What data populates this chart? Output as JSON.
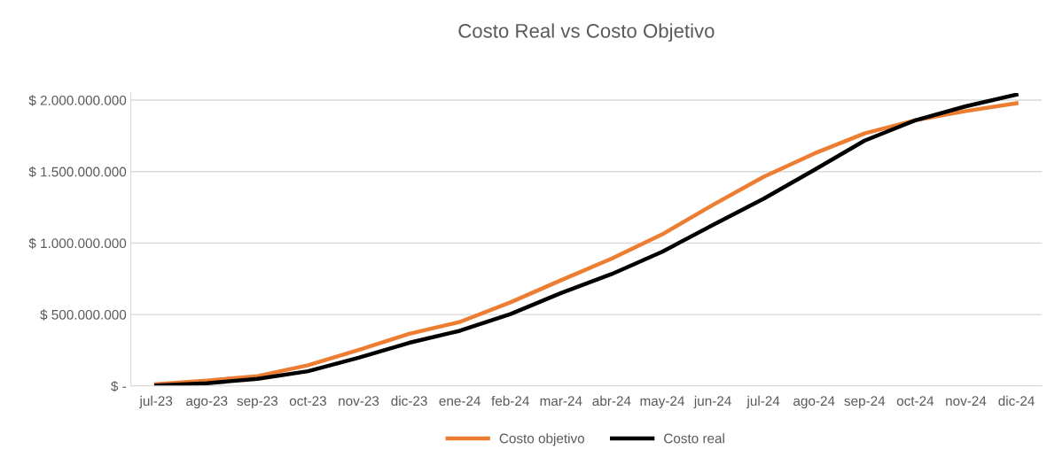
{
  "chart_data": {
    "type": "line",
    "title": "Costo Real vs Costo Objetivo",
    "categories": [
      "jul-23",
      "ago-23",
      "sep-23",
      "oct-23",
      "nov-23",
      "dic-23",
      "ene-24",
      "feb-24",
      "mar-24",
      "abr-24",
      "may-24",
      "jun-24",
      "jul-24",
      "ago-24",
      "sep-24",
      "oct-24",
      "nov-24",
      "dic-24"
    ],
    "series": [
      {
        "name": "Costo objetivo",
        "color": "#ed7d31",
        "values": [
          13000000,
          38000000,
          69000000,
          145000000,
          252000000,
          365000000,
          448000000,
          585000000,
          740000000,
          891000000,
          1061000000,
          1267000000,
          1463000000,
          1626000000,
          1767000000,
          1859000000,
          1924000000,
          1978000000
        ]
      },
      {
        "name": "Costo real",
        "color": "#000000",
        "values": [
          4000000,
          19000000,
          50000000,
          103000000,
          197000000,
          302000000,
          386000000,
          503000000,
          650000000,
          783000000,
          939000000,
          1126000000,
          1309000000,
          1511000000,
          1717000000,
          1859000000,
          1957000000,
          2039000000
        ]
      }
    ],
    "ylim": [
      0,
      2050000000
    ],
    "yticks": [
      {
        "value": 0,
        "label": "$ -"
      },
      {
        "value": 500000000,
        "label": "$ 500.000.000"
      },
      {
        "value": 1000000000,
        "label": "$ 1.000.000.000"
      },
      {
        "value": 1500000000,
        "label": "$ 1.500.000.000"
      },
      {
        "value": 2000000000,
        "label": "$ 2.000.000.000"
      }
    ],
    "grid": "y",
    "legend": "bottom",
    "marker": "none",
    "line_style": "solid"
  }
}
